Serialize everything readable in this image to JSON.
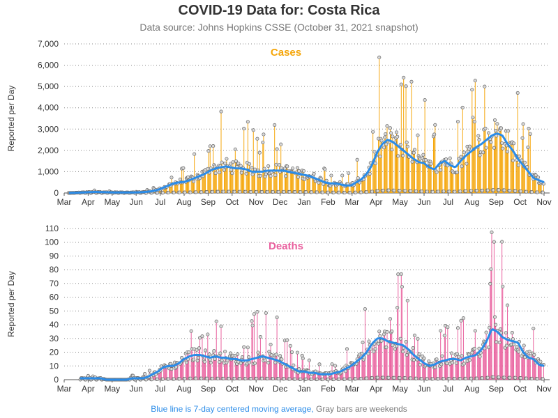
{
  "title": "COVID-19 Data for: Costa Rica",
  "subtitle": "Data source: Johns Hopkins CSSE (October 31, 2021 snapshot)",
  "footnote": {
    "blue_part": "Blue line is 7-day centered moving average,",
    "gray_part": "Gray bars are weekends"
  },
  "colors": {
    "cases": "#f5a60a",
    "deaths": "#e9609e",
    "average": "#2b8ce8",
    "weekend": "#999999",
    "point_fill": "#d8d8d8",
    "point_stroke": "#666666",
    "grid": "#888888"
  },
  "chart_data": [
    {
      "type": "bar",
      "title": "Cases",
      "ylabel": "Reported per Day",
      "ylim": [
        0,
        7000
      ],
      "yticks": [
        "0",
        "1,000",
        "2,000",
        "3,000",
        "4,000",
        "5,000",
        "6,000",
        "7,000"
      ],
      "ytick_values": [
        0,
        1000,
        2000,
        3000,
        4000,
        5000,
        6000,
        7000
      ],
      "xticks": [
        "Mar",
        "Apr",
        "May",
        "Jun",
        "Jul",
        "Aug",
        "Sep",
        "Oct",
        "Nov",
        "Dec",
        "Jan",
        "Feb",
        "Mar",
        "Apr",
        "May",
        "Jun",
        "Jul",
        "Aug",
        "Sep",
        "Oct",
        "Nov"
      ],
      "grid": "horizontal dotted",
      "series": [
        {
          "values": [
            0,
            0,
            10,
            20,
            30,
            40,
            50,
            40,
            35,
            30,
            25,
            25,
            25,
            25,
            30,
            40,
            60,
            90,
            150,
            250,
            350,
            450,
            500,
            520,
            600,
            700,
            800,
            900,
            1050,
            1150,
            1200,
            1250,
            1200,
            1150,
            1150,
            1100,
            1000,
            1000,
            1000,
            1050,
            1050,
            1050,
            1050,
            1000,
            950,
            900,
            850,
            800,
            700,
            600,
            500,
            450,
            450,
            400,
            350,
            350,
            500,
            650,
            900,
            1300,
            1900,
            2300,
            2500,
            2400,
            2200,
            2000,
            1800,
            1600,
            1450,
            1400,
            1200,
            1100,
            1400,
            1500,
            1300,
            1200,
            1500,
            1750,
            1950,
            2150,
            2300,
            2500,
            2700,
            2800,
            2700,
            2300,
            2000,
            1600,
            1300,
            1000,
            700,
            600,
            500
          ]
        },
        {
          "values": [
            0,
            0,
            0,
            1,
            1,
            1,
            1,
            1,
            0,
            0,
            0,
            0,
            0,
            1,
            1,
            1,
            2,
            4,
            6,
            9,
            10,
            10,
            12,
            15,
            17,
            18,
            18,
            17,
            16,
            17,
            16,
            16,
            15,
            15,
            14,
            14,
            15,
            16,
            17,
            16,
            15,
            14,
            12,
            10,
            8,
            6,
            6,
            5,
            5,
            4,
            4,
            4,
            5,
            6,
            8,
            10,
            13,
            16,
            20,
            26,
            30,
            30,
            28,
            27,
            26,
            25,
            22,
            18,
            15,
            12,
            10,
            11,
            13,
            14,
            15,
            15,
            14,
            16,
            17,
            18,
            22,
            28,
            37,
            35,
            31,
            29,
            28,
            27,
            20,
            16,
            15,
            11,
            10
          ]
        }
      ]
    },
    {
      "type": "bar",
      "title": "Deaths",
      "ylabel": "Reported per Day",
      "ylim": [
        0,
        110
      ],
      "yticks": [
        "0",
        "10",
        "20",
        "30",
        "40",
        "50",
        "60",
        "70",
        "80",
        "90",
        "100",
        "110"
      ],
      "ytick_values": [
        0,
        10,
        20,
        30,
        40,
        50,
        60,
        70,
        80,
        90,
        100,
        110
      ],
      "xticks": [
        "Mar",
        "Apr",
        "May",
        "Jun",
        "Jul",
        "Aug",
        "Sep",
        "Oct",
        "Nov",
        "Dec",
        "Jan",
        "Feb",
        "Mar",
        "Apr",
        "May",
        "Jun",
        "Jul",
        "Aug",
        "Sep",
        "Oct",
        "Nov"
      ],
      "grid": "horizontal dotted"
    }
  ]
}
